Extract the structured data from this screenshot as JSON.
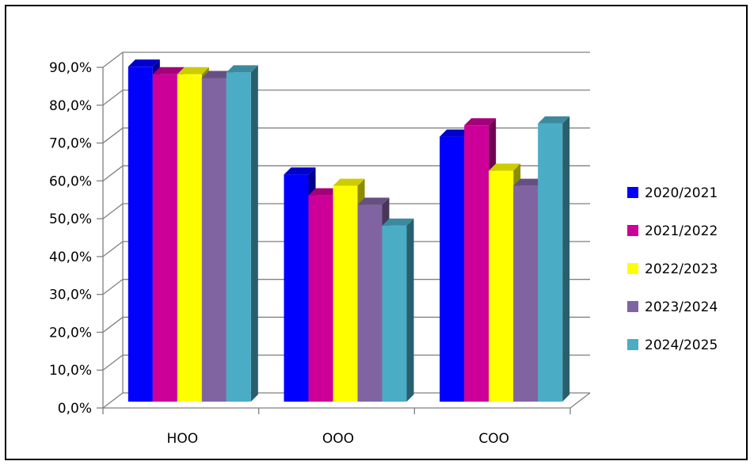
{
  "chart_data": {
    "type": "bar",
    "style": "3d-clustered",
    "title": "",
    "xlabel": "",
    "ylabel": "",
    "categories": [
      "HOO",
      "OOO",
      "COO"
    ],
    "series": [
      {
        "name": "2020/2021",
        "color": "#0000FF",
        "values": [
          88.5,
          60.0,
          70.0
        ]
      },
      {
        "name": "2021/2022",
        "color": "#CC0099",
        "values": [
          86.5,
          54.5,
          73.0
        ]
      },
      {
        "name": "2022/2023",
        "color": "#FFFF00",
        "values": [
          86.5,
          57.0,
          61.0
        ]
      },
      {
        "name": "2023/2024",
        "color": "#8064A2",
        "values": [
          85.5,
          52.0,
          57.0
        ]
      },
      {
        "name": "2024/2025",
        "color": "#4BACC6",
        "values": [
          87.0,
          46.5,
          73.5
        ]
      }
    ],
    "ylim": [
      0,
      90
    ],
    "ytick_values": [
      0,
      10,
      20,
      30,
      40,
      50,
      60,
      70,
      80,
      90
    ],
    "ytick_labels": [
      "0,0%",
      "10,0%",
      "20,0%",
      "30,0%",
      "40,0%",
      "50,0%",
      "60,0%",
      "70,0%",
      "80,0%",
      "90,0%"
    ],
    "grid": true,
    "legend_position": "right"
  }
}
